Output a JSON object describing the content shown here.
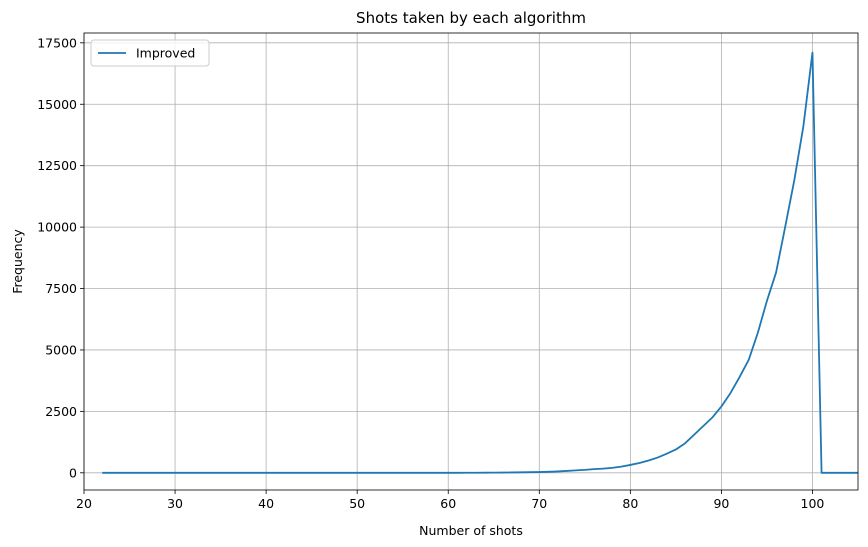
{
  "chart_data": {
    "type": "line",
    "title": "Shots taken by each algorithm",
    "xlabel": "Number of shots",
    "ylabel": "Frequency",
    "xlim": [
      20,
      105
    ],
    "ylim": [
      -700,
      17900
    ],
    "xticks": [
      20,
      30,
      40,
      50,
      60,
      70,
      80,
      90,
      100
    ],
    "yticks": [
      0,
      2500,
      5000,
      7500,
      10000,
      12500,
      15000,
      17500
    ],
    "grid": true,
    "legend_position": "top-left",
    "series": [
      {
        "name": "Improved",
        "color": "#1f77b4",
        "x": [
          22,
          23,
          24,
          25,
          26,
          27,
          28,
          29,
          30,
          31,
          32,
          33,
          34,
          35,
          36,
          37,
          38,
          39,
          40,
          41,
          42,
          43,
          44,
          45,
          46,
          47,
          48,
          49,
          50,
          51,
          52,
          53,
          54,
          55,
          56,
          57,
          58,
          59,
          60,
          61,
          62,
          63,
          64,
          65,
          66,
          67,
          68,
          69,
          70,
          71,
          72,
          73,
          74,
          75,
          76,
          77,
          78,
          79,
          80,
          81,
          82,
          83,
          84,
          85,
          86,
          87,
          88,
          89,
          90,
          91,
          92,
          93,
          94,
          95,
          96,
          97,
          98,
          99,
          100,
          101,
          102,
          103,
          104,
          105
        ],
        "y": [
          0,
          0,
          0,
          0,
          0,
          0,
          0,
          0,
          0,
          0,
          0,
          0,
          0,
          0,
          0,
          0,
          0,
          0,
          0,
          0,
          0,
          0,
          0,
          0,
          0,
          0,
          0,
          0,
          0,
          0,
          0,
          0,
          0,
          0,
          0,
          0,
          0,
          0,
          0,
          0,
          1,
          2,
          4,
          6,
          10,
          15,
          20,
          25,
          30,
          40,
          55,
          75,
          100,
          120,
          150,
          170,
          200,
          250,
          320,
          400,
          500,
          620,
          780,
          950,
          1200,
          1550,
          1900,
          2250,
          2700,
          3250,
          3900,
          4600,
          5700,
          7000,
          8150,
          10000,
          11900,
          14100,
          17100,
          0,
          0,
          0,
          0,
          0
        ]
      }
    ]
  }
}
